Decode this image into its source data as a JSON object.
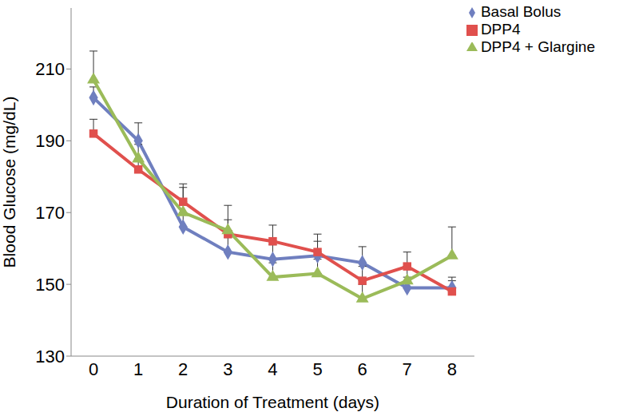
{
  "chart_data": {
    "type": "line",
    "x_label": "Duration of Treatment  (days)",
    "y_label": "Blood Glucose (mg/dL)",
    "x": [
      0,
      1,
      2,
      3,
      4,
      5,
      6,
      7,
      8
    ],
    "xlim": [
      -0.5,
      8.5
    ],
    "xticks": [
      0,
      1,
      2,
      3,
      4,
      5,
      6,
      7,
      8
    ],
    "ylim": [
      130,
      227
    ],
    "yticks": [
      130,
      150,
      170,
      190,
      210
    ],
    "grid": false,
    "legend": "upper right",
    "series": [
      {
        "name": "Basal Bolus",
        "color": "#6f7fbf",
        "marker": "diamond",
        "values": [
          202,
          190,
          166,
          159,
          157,
          158,
          156,
          149,
          149
        ],
        "errors": [
          3,
          5,
          4,
          4,
          4,
          4,
          4.5,
          3,
          3
        ]
      },
      {
        "name": "DPP4",
        "color": "#e0504d",
        "marker": "square",
        "values": [
          192,
          182,
          173,
          164,
          162,
          159,
          151,
          155,
          148
        ],
        "errors": [
          4,
          3,
          5,
          4,
          4.5,
          5,
          4,
          4,
          3
        ]
      },
      {
        "name": "DPP4 + Glargine",
        "color": "#9bbb59",
        "marker": "triangle",
        "values": [
          207,
          185,
          170,
          165,
          152,
          153,
          146,
          151,
          158
        ],
        "errors": [
          8,
          4,
          7,
          7,
          4,
          4,
          4,
          4,
          8
        ]
      }
    ]
  }
}
